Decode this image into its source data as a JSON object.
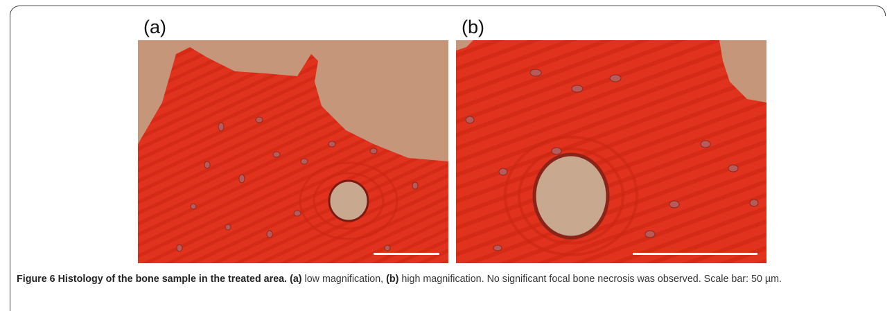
{
  "figure": {
    "panels": [
      {
        "label": "(a)",
        "description_key": "low-magnification"
      },
      {
        "label": "(b)",
        "description_key": "high-magnification"
      }
    ],
    "caption": {
      "title": "Figure 6 Histology of the bone sample in the treated area.",
      "a_tag": "(a)",
      "a_text": " low magnification, ",
      "b_tag": "(b)",
      "b_text": " high magnification. No significant focal bone necrosis was observed. Scale bar: 50 µm."
    },
    "colors": {
      "bone": "#e0321c",
      "bone_dark": "#c92612",
      "background": "#c5967a",
      "lacuna": "#b85a5a",
      "scale_bar": "#ffffff"
    }
  }
}
